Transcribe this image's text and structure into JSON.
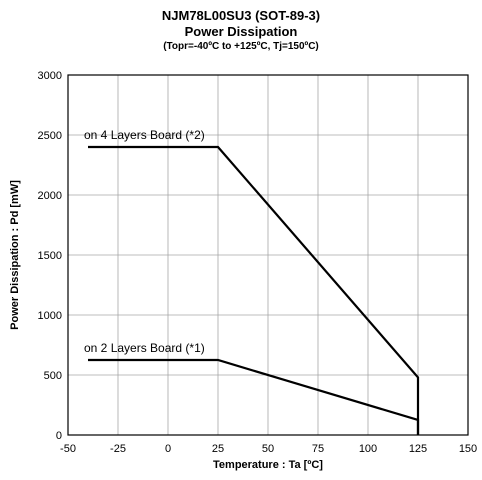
{
  "chart_data": {
    "type": "line",
    "title": "NJM78L00SU3 (SOT-89-3)",
    "subtitle": "Power Dissipation",
    "conditions": "(Topr=-40ºC to +125ºC, Tj=150ºC)",
    "xlabel": "Temperature : Ta [ºC]",
    "ylabel": "Power Dissipation : Pd [mW]",
    "xlim": [
      -50,
      150
    ],
    "ylim": [
      0,
      3000
    ],
    "x_ticks": [
      -50,
      -25,
      0,
      25,
      50,
      75,
      100,
      125,
      150
    ],
    "y_ticks": [
      0,
      500,
      1000,
      1500,
      2000,
      2500,
      3000
    ],
    "grid": true,
    "series": [
      {
        "name": "on 4 Layers Board (*2)",
        "points": [
          [
            -40,
            2400
          ],
          [
            25,
            2400
          ],
          [
            125,
            480
          ],
          [
            125,
            0
          ]
        ]
      },
      {
        "name": "on 2 Layers Board (*1)",
        "points": [
          [
            -40,
            625
          ],
          [
            25,
            625
          ],
          [
            125,
            125
          ],
          [
            125,
            0
          ]
        ]
      }
    ]
  }
}
